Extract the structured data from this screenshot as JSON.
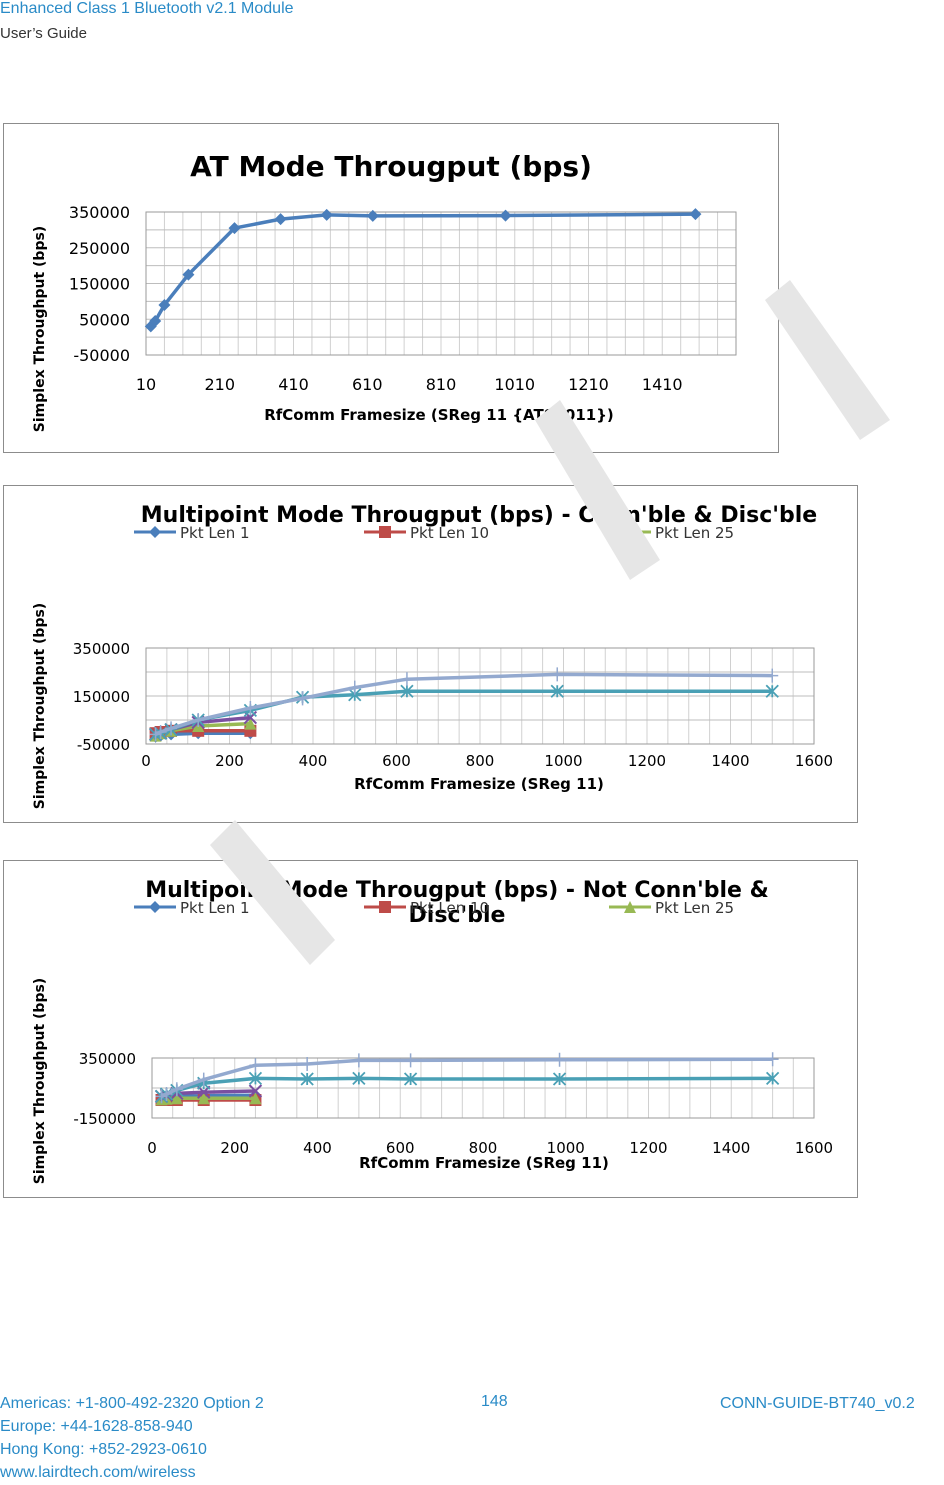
{
  "header": {
    "title": "Enhanced Class 1 Bluetooth v2.1 Module",
    "subtitle": "User’s Guide"
  },
  "footer": {
    "contacts": [
      "Americas: +1-800-492-2320 Option 2",
      "Europe: +44-1628-858-940",
      "Hong Kong: +852-2923-0610",
      "www.lairdtech.com/wireless"
    ],
    "page_number": "148",
    "doc_id": "CONN-GUIDE-BT740_v0.2"
  },
  "chart_data": [
    {
      "type": "line",
      "title": "AT Mode Througput (bps)",
      "xlabel": "RfComm Framesize (SReg 11 {ATS9011})",
      "ylabel": "Simplex Throughput  (bps)",
      "xlim": [
        10,
        1610
      ],
      "ylim": [
        -50000,
        350000
      ],
      "xticks": [
        "10",
        "210",
        "410",
        "610",
        "810",
        "1010",
        "1210",
        "1410"
      ],
      "yticks": [
        "350000",
        "250000",
        "150000",
        "50000",
        "-50000"
      ],
      "grid": true,
      "legend": "none",
      "colors": {
        "line": "#4a7ebb"
      },
      "series": [
        {
          "x": [
            23,
            35,
            60,
            125,
            250,
            375,
            500,
            625,
            985,
            1500
          ],
          "y": [
            30000,
            45000,
            90000,
            175000,
            305000,
            330000,
            342000,
            339000,
            340000,
            344000
          ]
        }
      ]
    },
    {
      "type": "line",
      "title": "Multipoint Mode Througput (bps) - Conn'ble & Disc'ble",
      "xlabel": "RfComm  Framesize (SReg 11)",
      "ylabel": "Simplex Throughput   (bps)",
      "xlim": [
        0,
        1600
      ],
      "ylim": [
        -50000,
        350000
      ],
      "xticks": [
        "0",
        "200",
        "400",
        "600",
        "800",
        "1000",
        "1200",
        "1400",
        "1600"
      ],
      "yticks": [
        "350000",
        "150000",
        "-50000"
      ],
      "grid": true,
      "legend": "top",
      "legend_entries": [
        "Pkt Len 1",
        "Pkt Len 10",
        "Pkt Len 25"
      ],
      "series": [
        {
          "name": "Pkt Len 1",
          "color": "#4a7ebb",
          "marker": "diamond",
          "x": [
            23,
            35,
            60,
            125,
            250
          ],
          "y": [
            -20000,
            -15000,
            -10000,
            -5000,
            -5000
          ]
        },
        {
          "name": "Pkt Len 10",
          "color": "#be4b48",
          "marker": "square",
          "x": [
            23,
            35,
            60,
            125,
            250
          ],
          "y": [
            -5000,
            0,
            5000,
            5000,
            5000
          ]
        },
        {
          "name": "Pkt Len 25",
          "color": "#98b954",
          "marker": "triangle",
          "x": [
            23,
            35,
            60,
            125,
            250
          ],
          "y": [
            -15000,
            -5000,
            5000,
            25000,
            35000
          ]
        },
        {
          "name": "",
          "color": "#7a4fa0",
          "marker": "x",
          "x": [
            23,
            35,
            60,
            125,
            250
          ],
          "y": [
            -10000,
            -5000,
            10000,
            40000,
            60000
          ]
        },
        {
          "name": "",
          "color": "#4aa0b5",
          "marker": "star",
          "x": [
            23,
            35,
            60,
            125,
            250,
            375,
            500,
            625,
            985,
            1500
          ],
          "y": [
            -10000,
            -5000,
            10000,
            50000,
            90000,
            145000,
            155000,
            170000,
            170000,
            170000
          ]
        },
        {
          "name": "",
          "color": "#93a9cf",
          "marker": "plus",
          "x": [
            23,
            35,
            60,
            125,
            250,
            375,
            500,
            625,
            985,
            1500
          ],
          "y": [
            -10000,
            0,
            15000,
            50000,
            100000,
            140000,
            185000,
            220000,
            240000,
            235000
          ]
        }
      ]
    },
    {
      "type": "line",
      "title": "Multipoint Mode Througput (bps) - Not Conn'ble & Disc'ble",
      "xlabel": "RfComm  Framesize (SReg 11)",
      "ylabel": "Simplex Throughput   (bps)",
      "xlim": [
        0,
        1600
      ],
      "ylim": [
        -150000,
        350000
      ],
      "xticks": [
        "0",
        "200",
        "400",
        "600",
        "800",
        "1000",
        "1200",
        "1400",
        "1600"
      ],
      "yticks": [
        "350000",
        "-150000"
      ],
      "grid": true,
      "legend": "top",
      "legend_entries": [
        "Pkt Len 1",
        "Pkt Len 10",
        "Pkt Len 25"
      ],
      "series": [
        {
          "name": "Pkt Len 1",
          "color": "#4a7ebb",
          "marker": "diamond",
          "x": [
            23,
            35,
            60,
            125,
            250
          ],
          "y": [
            20000,
            25000,
            30000,
            35000,
            40000
          ]
        },
        {
          "name": "Pkt Len 10",
          "color": "#be4b48",
          "marker": "square",
          "x": [
            23,
            35,
            60,
            125,
            250
          ],
          "y": [
            0,
            0,
            0,
            0,
            0
          ]
        },
        {
          "name": "Pkt Len 25",
          "color": "#98b954",
          "marker": "triangle",
          "x": [
            23,
            35,
            60,
            125,
            250
          ],
          "y": [
            5000,
            10000,
            15000,
            15000,
            15000
          ]
        },
        {
          "name": "",
          "color": "#7a4fa0",
          "marker": "x",
          "x": [
            23,
            35,
            60,
            125,
            250
          ],
          "y": [
            30000,
            40000,
            55000,
            65000,
            75000
          ]
        },
        {
          "name": "",
          "color": "#4aa0b5",
          "marker": "star",
          "x": [
            23,
            35,
            60,
            125,
            250,
            375,
            500,
            625,
            985,
            1500
          ],
          "y": [
            30000,
            50000,
            80000,
            140000,
            180000,
            175000,
            180000,
            175000,
            175000,
            180000
          ]
        },
        {
          "name": "",
          "color": "#93a9cf",
          "marker": "plus",
          "x": [
            23,
            35,
            60,
            125,
            250,
            375,
            500,
            625,
            985,
            1500
          ],
          "y": [
            30000,
            50000,
            90000,
            170000,
            290000,
            300000,
            330000,
            330000,
            335000,
            340000
          ]
        }
      ]
    }
  ]
}
